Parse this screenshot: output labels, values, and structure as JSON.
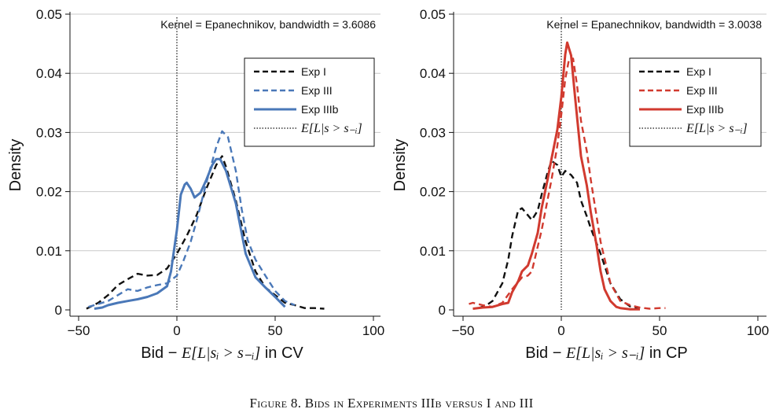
{
  "figure_caption": "Figure 8. Bids in Experiments IIIb versus I and III",
  "ylabel_text": "Density",
  "xlabel_math": "Bid − E[L|sᵢ > s₋ᵢ]",
  "chart_data": [
    {
      "type": "line",
      "panel": "left",
      "xlabel_suffix": "in CV",
      "ylabel": "Density",
      "annotation": "Kernel = Epanechnikov, bandwidth = 3.6086",
      "xlim": [
        -50,
        100
      ],
      "ylim": [
        0,
        0.05
      ],
      "xticks": [
        -50,
        0,
        50,
        100
      ],
      "xtick_labels": [
        "−50",
        "0",
        "50",
        "100"
      ],
      "yticks": [
        0,
        0.01,
        0.02,
        0.03,
        0.04,
        0.05
      ],
      "ytick_labels": [
        "0",
        "0.01",
        "0.02",
        "0.03",
        "0.04",
        "0.05"
      ],
      "grid": "horizontal",
      "legend_position": "top-right",
      "vline_x": 0,
      "series": [
        {
          "name": "Exp I",
          "color": "#111111",
          "style": "dashed",
          "x": [
            -46,
            -40,
            -35,
            -30,
            -25,
            -20,
            -15,
            -10,
            -5,
            0,
            5,
            10,
            15,
            20,
            23,
            25,
            30,
            35,
            40,
            45,
            50,
            55,
            60,
            65,
            70,
            75
          ],
          "y": [
            0.0002,
            0.0012,
            0.0025,
            0.0042,
            0.0052,
            0.0061,
            0.0058,
            0.0059,
            0.007,
            0.0095,
            0.0125,
            0.016,
            0.0205,
            0.0245,
            0.026,
            0.0242,
            0.0185,
            0.0115,
            0.0065,
            0.0038,
            0.0025,
            0.0012,
            0.0008,
            0.0003,
            0.0003,
            0.0002
          ]
        },
        {
          "name": "Exp III",
          "color": "#4A78B8",
          "style": "dashed",
          "x": [
            -45,
            -40,
            -35,
            -30,
            -25,
            -20,
            -15,
            -10,
            -5,
            0,
            3,
            7,
            10,
            15,
            20,
            23,
            26,
            30,
            33,
            36,
            40,
            45,
            50,
            55,
            60
          ],
          "y": [
            0.0005,
            0.001,
            0.0015,
            0.0025,
            0.0035,
            0.0032,
            0.0038,
            0.0042,
            0.0045,
            0.0058,
            0.008,
            0.0115,
            0.015,
            0.0215,
            0.0275,
            0.0302,
            0.0292,
            0.0235,
            0.017,
            0.0118,
            0.0085,
            0.0058,
            0.0032,
            0.0015,
            0.0008
          ]
        },
        {
          "name": "Exp IIIb",
          "color": "#4A78B8",
          "style": "solid",
          "x": [
            -42,
            -38,
            -35,
            -30,
            -25,
            -20,
            -15,
            -10,
            -5,
            -3,
            0,
            2,
            4,
            5,
            7,
            9,
            12,
            15,
            18,
            20,
            22,
            25,
            30,
            35,
            40,
            45,
            50,
            55
          ],
          "y": [
            0.0002,
            0.0004,
            0.0008,
            0.0012,
            0.0015,
            0.0018,
            0.0022,
            0.0028,
            0.004,
            0.0065,
            0.0135,
            0.0195,
            0.0212,
            0.0215,
            0.0205,
            0.019,
            0.0198,
            0.022,
            0.0245,
            0.0255,
            0.0255,
            0.0235,
            0.018,
            0.0095,
            0.0055,
            0.0038,
            0.0022,
            0.0005
          ]
        }
      ]
    },
    {
      "type": "line",
      "panel": "right",
      "xlabel_suffix": "in CP",
      "ylabel": "Density",
      "annotation": "Kernel = Epanechnikov, bandwidth = 3.0038",
      "xlim": [
        -50,
        100
      ],
      "ylim": [
        0,
        0.05
      ],
      "xticks": [
        -50,
        0,
        50,
        100
      ],
      "xtick_labels": [
        "−50",
        "0",
        "50",
        "100"
      ],
      "yticks": [
        0,
        0.01,
        0.02,
        0.03,
        0.04,
        0.05
      ],
      "ytick_labels": [
        "0",
        "0.01",
        "0.02",
        "0.03",
        "0.04",
        "0.05"
      ],
      "grid": "horizontal",
      "legend_position": "top-right",
      "vline_x": 0,
      "series": [
        {
          "name": "Exp I",
          "color": "#111111",
          "style": "dashed",
          "x": [
            -42,
            -38,
            -35,
            -30,
            -27,
            -25,
            -22,
            -20,
            -17,
            -15,
            -12,
            -10,
            -7,
            -5,
            -2,
            0,
            2,
            5,
            8,
            10,
            13,
            15,
            20,
            25,
            30,
            35,
            40
          ],
          "y": [
            0.0003,
            0.0008,
            0.0015,
            0.0045,
            0.0085,
            0.0125,
            0.0168,
            0.0172,
            0.016,
            0.0152,
            0.0168,
            0.0195,
            0.0232,
            0.0252,
            0.0245,
            0.0225,
            0.0235,
            0.0228,
            0.0215,
            0.0185,
            0.0158,
            0.0138,
            0.0095,
            0.0045,
            0.0018,
            0.0006,
            0.0003
          ]
        },
        {
          "name": "Exp III",
          "color": "#D13A2F",
          "style": "dashed",
          "x": [
            -47,
            -45,
            -40,
            -35,
            -30,
            -25,
            -20,
            -17,
            -15,
            -10,
            -5,
            -2,
            0,
            2,
            4,
            6,
            8,
            10,
            13,
            15,
            20,
            25,
            30,
            35,
            40,
            45,
            50,
            53
          ],
          "y": [
            0.001,
            0.0012,
            0.0008,
            0.0005,
            0.0012,
            0.0035,
            0.0055,
            0.0058,
            0.0065,
            0.0135,
            0.022,
            0.0278,
            0.033,
            0.039,
            0.0425,
            0.0425,
            0.038,
            0.032,
            0.0268,
            0.022,
            0.0115,
            0.0045,
            0.0015,
            0.0008,
            0.0004,
            0.0002,
            0.0003,
            0.0003
          ]
        },
        {
          "name": "Exp IIIb",
          "color": "#D13A2F",
          "style": "solid",
          "x": [
            -45,
            -40,
            -35,
            -30,
            -27,
            -25,
            -22,
            -20,
            -17,
            -15,
            -12,
            -10,
            -7,
            -5,
            -2,
            0,
            2,
            3,
            5,
            7,
            10,
            13,
            15,
            18,
            20,
            22,
            25,
            28,
            30,
            35,
            40
          ],
          "y": [
            0.0002,
            0.0004,
            0.0005,
            0.001,
            0.0012,
            0.003,
            0.0048,
            0.0065,
            0.0075,
            0.0095,
            0.013,
            0.0172,
            0.022,
            0.0255,
            0.0305,
            0.036,
            0.0432,
            0.0452,
            0.043,
            0.036,
            0.026,
            0.021,
            0.0165,
            0.0108,
            0.0065,
            0.0035,
            0.0015,
            0.0005,
            0.0003,
            0.0001,
            0.0001
          ]
        }
      ],
      "vline_legend_label": "E[L|s > s₋ᵢ]"
    }
  ]
}
